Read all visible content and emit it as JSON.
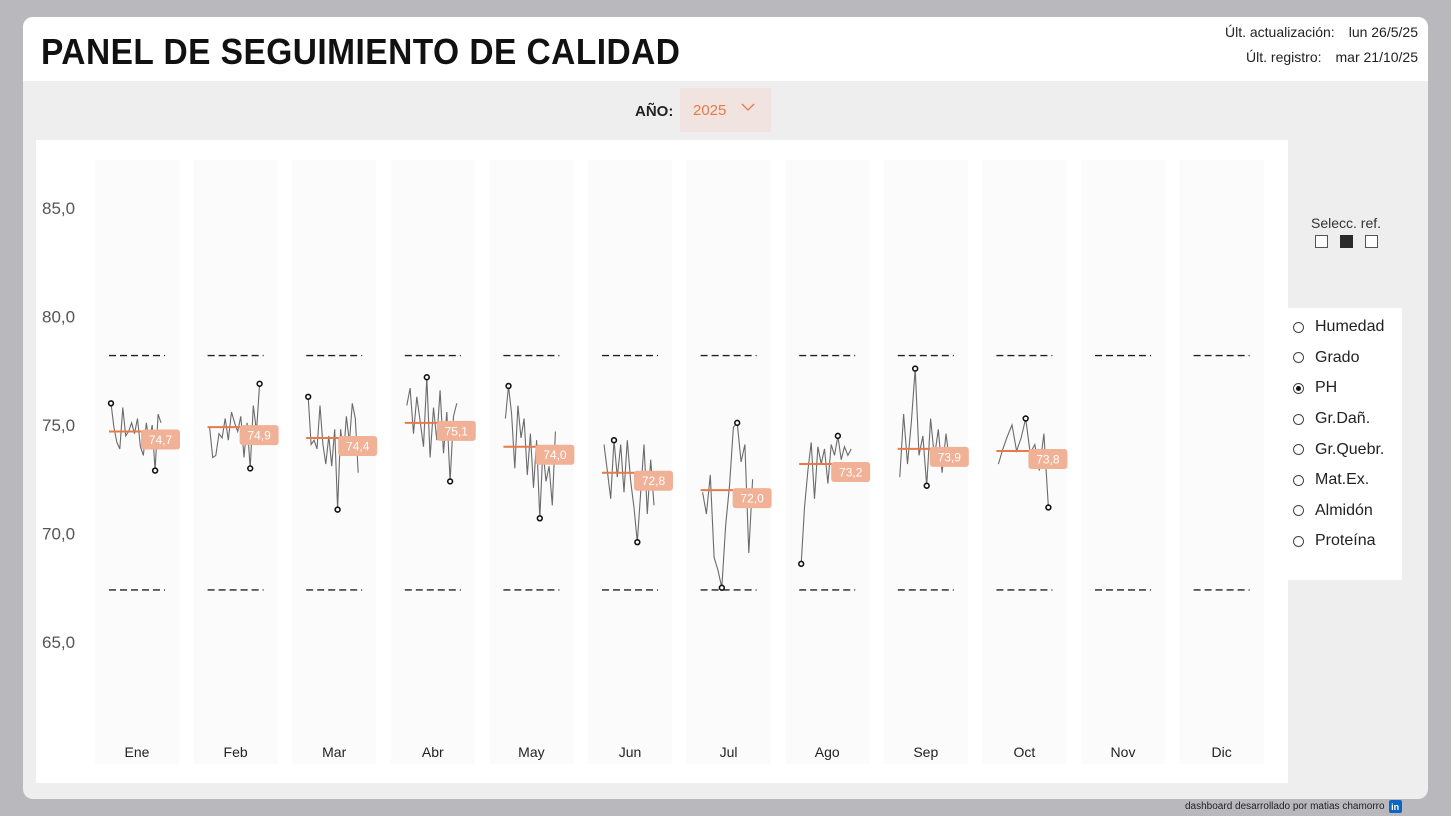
{
  "header": {
    "title": "PANEL DE SEGUIMIENTO DE CALIDAD",
    "last_update_label": "Últ. actualización:",
    "last_update_value": "lun 26/5/25",
    "last_record_label": "Últ. registro:",
    "last_record_value": "mar 21/10/25"
  },
  "filter": {
    "year_label": "AÑO:",
    "year_value": "2025"
  },
  "reference": {
    "label": "Selecc. ref.",
    "options_count": 3,
    "active_index": 1
  },
  "variables": {
    "items": [
      "Humedad",
      "Grado",
      "PH",
      "Gr.Dañ.",
      "Gr.Quebr.",
      "Mat.Ex.",
      "Almidón",
      "Proteína"
    ],
    "selected": "PH"
  },
  "credit": {
    "text": "dashboard desarrollado por matias chamorro",
    "icon": "linkedin-icon"
  },
  "colors": {
    "accent": "#e77a48",
    "label_bg": "#f0b196",
    "line": "#6b6b6b",
    "year_bg": "#f1e3df"
  },
  "chart_data": {
    "type": "line",
    "ylim": [
      60.0,
      86.5
    ],
    "y_ticks": [
      "85,0",
      "80,0",
      "75,0",
      "70,0",
      "65,0"
    ],
    "y_tick_values": [
      85,
      80,
      75,
      70,
      65
    ],
    "upper_limit": 78.2,
    "lower_limit": 67.4,
    "months": [
      {
        "label": "Ene",
        "avg": 74.7,
        "avg_label": "74,7",
        "min": 72.9,
        "max": 76.0,
        "values": [
          76.0,
          74.9,
          74.2,
          73.9,
          75.8,
          74.5,
          74.7,
          75.1,
          74.6,
          75.3,
          74.0,
          73.6,
          75.1,
          74.2,
          75.0,
          72.9,
          75.5,
          75.1
        ]
      },
      {
        "label": "Feb",
        "avg": 74.9,
        "avg_label": "74,9",
        "min": 73.0,
        "max": 76.9,
        "values": [
          74.9,
          73.5,
          73.6,
          74.6,
          74.4,
          75.3,
          74.3,
          75.6,
          75.1,
          74.7,
          75.4,
          73.5,
          75.1,
          73.0,
          75.9,
          74.7,
          76.9
        ]
      },
      {
        "label": "Mar",
        "avg": 74.4,
        "avg_label": "74,4",
        "min": 71.1,
        "max": 76.3,
        "values": [
          76.3,
          74.1,
          74.3,
          73.9,
          75.9,
          74.1,
          73.2,
          74.5,
          73.1,
          74.8,
          71.1,
          74.8,
          73.6,
          75.4,
          74.2,
          76.0,
          75.3,
          72.8
        ]
      },
      {
        "label": "Abr",
        "avg": 75.1,
        "avg_label": "75,1",
        "min": 72.4,
        "max": 77.2,
        "values": [
          75.9,
          76.7,
          74.6,
          76.3,
          75.2,
          74.0,
          77.2,
          73.5,
          75.8,
          74.3,
          76.6,
          73.7,
          75.6,
          72.4,
          75.4,
          76.0
        ]
      },
      {
        "label": "May",
        "avg": 74.0,
        "avg_label": "74,0",
        "min": 70.7,
        "max": 76.8,
        "values": [
          75.3,
          76.8,
          75.5,
          73.0,
          75.9,
          74.4,
          75.3,
          72.7,
          74.6,
          72.1,
          74.3,
          70.7,
          73.9,
          72.4,
          73.1,
          71.3,
          74.7
        ]
      },
      {
        "label": "Jun",
        "avg": 72.8,
        "avg_label": "72,8",
        "min": 69.6,
        "max": 74.3,
        "values": [
          74.1,
          72.9,
          71.6,
          74.3,
          72.6,
          74.1,
          71.9,
          74.3,
          72.4,
          71.2,
          69.6,
          71.9,
          74.1,
          70.9,
          73.4,
          71.3
        ]
      },
      {
        "label": "Jul",
        "avg": 72.0,
        "avg_label": "72,0",
        "min": 67.5,
        "max": 75.1,
        "values": [
          71.9,
          70.9,
          72.7,
          68.9,
          68.3,
          67.5,
          70.4,
          72.2,
          74.9,
          75.1,
          73.3,
          74.1,
          69.1,
          72.5
        ]
      },
      {
        "label": "Ago",
        "avg": 73.2,
        "avg_label": "73,2",
        "min": 68.6,
        "max": 74.5,
        "values": [
          68.6,
          71.2,
          72.9,
          74.2,
          71.6,
          74.0,
          73.2,
          73.9,
          72.3,
          74.1,
          73.6,
          74.5,
          73.4,
          74.0,
          73.6,
          73.9
        ]
      },
      {
        "label": "Sep",
        "avg": 73.9,
        "avg_label": "73,9",
        "min": 72.2,
        "max": 77.6,
        "values": [
          72.6,
          75.5,
          73.2,
          75.1,
          77.6,
          73.6,
          74.5,
          72.2,
          75.3,
          73.5,
          74.8,
          72.8,
          74.6,
          73.2
        ]
      },
      {
        "label": "Oct",
        "avg": 73.8,
        "avg_label": "73,8",
        "min": 71.2,
        "max": 75.3,
        "values": [
          73.2,
          73.9,
          74.5,
          75.0,
          73.8,
          74.4,
          75.3,
          73.7,
          74.1,
          72.9,
          74.6,
          71.2
        ]
      },
      {
        "label": "Nov",
        "avg": null,
        "avg_label": "",
        "values": []
      },
      {
        "label": "Dic",
        "avg": null,
        "avg_label": "",
        "values": []
      }
    ]
  }
}
